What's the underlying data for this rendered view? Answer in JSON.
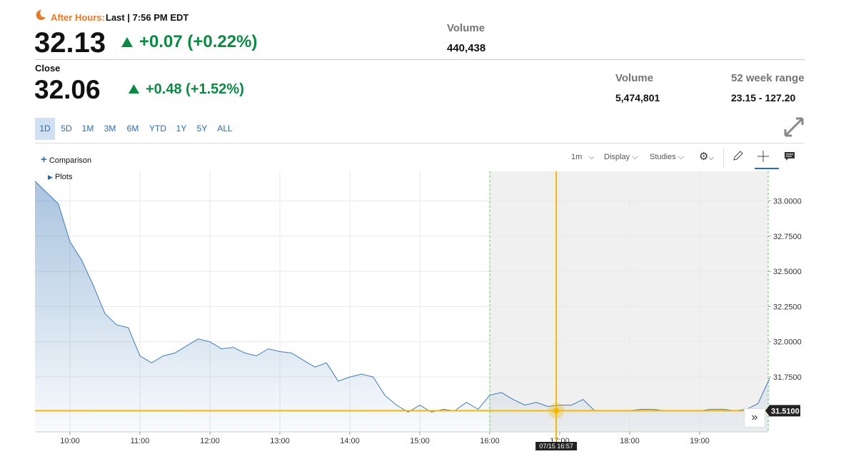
{
  "header": {
    "after_hours_label": "After Hours:",
    "last_time": "Last | 7:56 PM EDT",
    "after_price": "32.13",
    "after_change": "+0.07 (+0.22%)",
    "after_volume_label": "Volume",
    "after_volume": "440,438",
    "close_label": "Close",
    "close_price": "32.06",
    "close_change": "+0.48 (+1.52%)",
    "volume_label": "Volume",
    "volume": "5,474,801",
    "range_label": "52 week range",
    "range": "23.15 - 127.20"
  },
  "tabs": [
    "1D",
    "5D",
    "1M",
    "3M",
    "6M",
    "YTD",
    "1Y",
    "5Y",
    "ALL"
  ],
  "toolbar": {
    "comparison": "Comparison",
    "plots": "Plots",
    "interval": "1m",
    "display": "Display",
    "studies": "Studies"
  },
  "chart_data": {
    "type": "line",
    "color": "#3f7cb8",
    "area": true,
    "x": [
      "09:30",
      "09:40",
      "09:50",
      "10:00",
      "10:10",
      "10:20",
      "10:30",
      "10:40",
      "10:50",
      "11:00",
      "11:10",
      "11:20",
      "11:30",
      "11:40",
      "11:50",
      "12:00",
      "12:10",
      "12:20",
      "12:30",
      "12:40",
      "12:50",
      "13:00",
      "13:10",
      "13:20",
      "13:30",
      "13:40",
      "13:50",
      "14:00",
      "14:10",
      "14:20",
      "14:30",
      "14:40",
      "14:50",
      "15:00",
      "15:10",
      "15:20",
      "15:30",
      "15:40",
      "15:50",
      "16:00",
      "16:10",
      "16:20",
      "16:30",
      "16:40",
      "16:50",
      "17:00",
      "17:10",
      "17:20",
      "17:30",
      "17:40",
      "17:50",
      "18:00",
      "18:10",
      "18:20",
      "18:30",
      "18:40",
      "18:50",
      "19:00",
      "19:10",
      "19:20",
      "19:30",
      "19:40",
      "19:50",
      "20:00"
    ],
    "values": [
      33.14,
      33.06,
      32.98,
      32.71,
      32.58,
      32.4,
      32.2,
      32.12,
      32.1,
      31.9,
      31.85,
      31.9,
      31.92,
      31.97,
      32.02,
      32.0,
      31.95,
      31.96,
      31.92,
      31.9,
      31.95,
      31.93,
      31.92,
      31.87,
      31.82,
      31.85,
      31.72,
      31.75,
      31.77,
      31.75,
      31.62,
      31.55,
      31.5,
      31.55,
      31.5,
      31.52,
      31.51,
      31.57,
      31.52,
      31.62,
      31.64,
      31.59,
      31.55,
      31.57,
      31.54,
      31.55,
      31.55,
      31.59,
      31.51,
      31.51,
      31.51,
      31.51,
      31.52,
      31.52,
      31.51,
      31.51,
      31.51,
      31.51,
      31.52,
      31.52,
      31.51,
      31.52,
      31.56,
      31.74
    ],
    "xlim": [
      "09:30",
      "20:00"
    ],
    "xticks": [
      "10:00",
      "11:00",
      "12:00",
      "13:00",
      "14:00",
      "15:00",
      "16:00",
      "17:00",
      "18:00",
      "19:00"
    ],
    "ylim": [
      31.36,
      33.21
    ],
    "yticks": [
      {
        "value": 31.75,
        "label": "31.7500"
      },
      {
        "value": 32,
        "label": "32.0000"
      },
      {
        "value": 32.25,
        "label": "32.2500"
      },
      {
        "value": 32.5,
        "label": "32.5000"
      },
      {
        "value": 32.75,
        "label": "32.7500"
      },
      {
        "value": 33,
        "label": "33.0000"
      }
    ],
    "grid": true,
    "shaded_from": "16:00",
    "crosshair": {
      "x": "16:57",
      "x_label": "07/15 16:57",
      "y": 31.51,
      "y_label": "31.5100",
      "color": "#f5b800"
    }
  }
}
